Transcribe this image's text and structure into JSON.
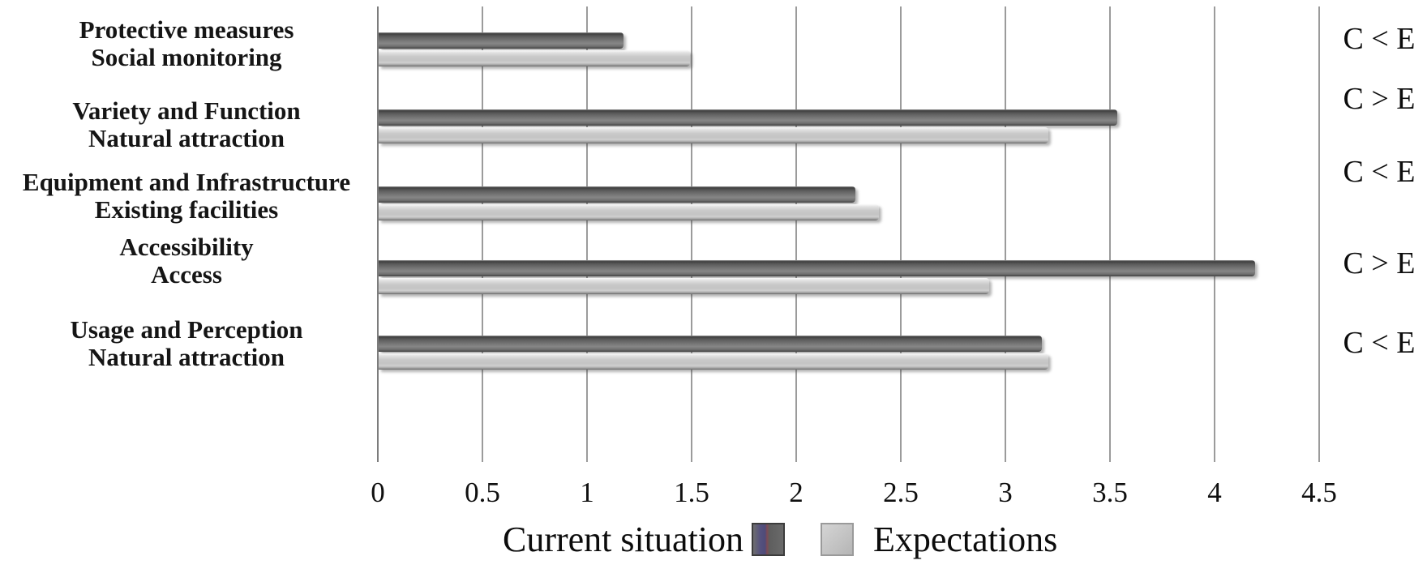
{
  "chart_data": {
    "type": "bar",
    "orientation": "horizontal",
    "title": "",
    "xlabel": "",
    "ylabel": "",
    "xlim": [
      0,
      4.5
    ],
    "grid": true,
    "legend_position": "bottom-center",
    "x_ticks": [
      "0",
      "0.5",
      "1",
      "1.5",
      "2",
      "2.5",
      "3",
      "3.5",
      "4",
      "4.5"
    ],
    "categories": [
      {
        "label_line1": "Protective measures",
        "label_line2": "Social monitoring",
        "comparison": "C < E"
      },
      {
        "label_line1": "Variety and Function",
        "label_line2": "Natural attraction",
        "comparison": "C > E"
      },
      {
        "label_line1": "Equipment and Infrastructure",
        "label_line2": "Existing facilities",
        "comparison": "C < E"
      },
      {
        "label_line1": "Accessibility",
        "label_line2": "Access",
        "comparison": "C > E"
      },
      {
        "label_line1": "Usage and Perception",
        "label_line2": "Natural attraction",
        "comparison": "C < E"
      }
    ],
    "series": [
      {
        "name": "Current situation",
        "color": "#666666",
        "values": [
          1.17,
          3.53,
          2.28,
          4.19,
          3.17
        ]
      },
      {
        "name": "Expectations",
        "color": "#c6c6c6",
        "values": [
          1.49,
          3.2,
          2.39,
          2.92,
          3.2
        ]
      }
    ]
  },
  "legend": {
    "current_label": "Current situation",
    "expectations_label": "Expectations"
  },
  "colors": {
    "gridline": "#9b9b9b",
    "bar_current": "#666666",
    "bar_expectations": "#c6c6c6",
    "text": "#111111",
    "background": "#ffffff"
  }
}
